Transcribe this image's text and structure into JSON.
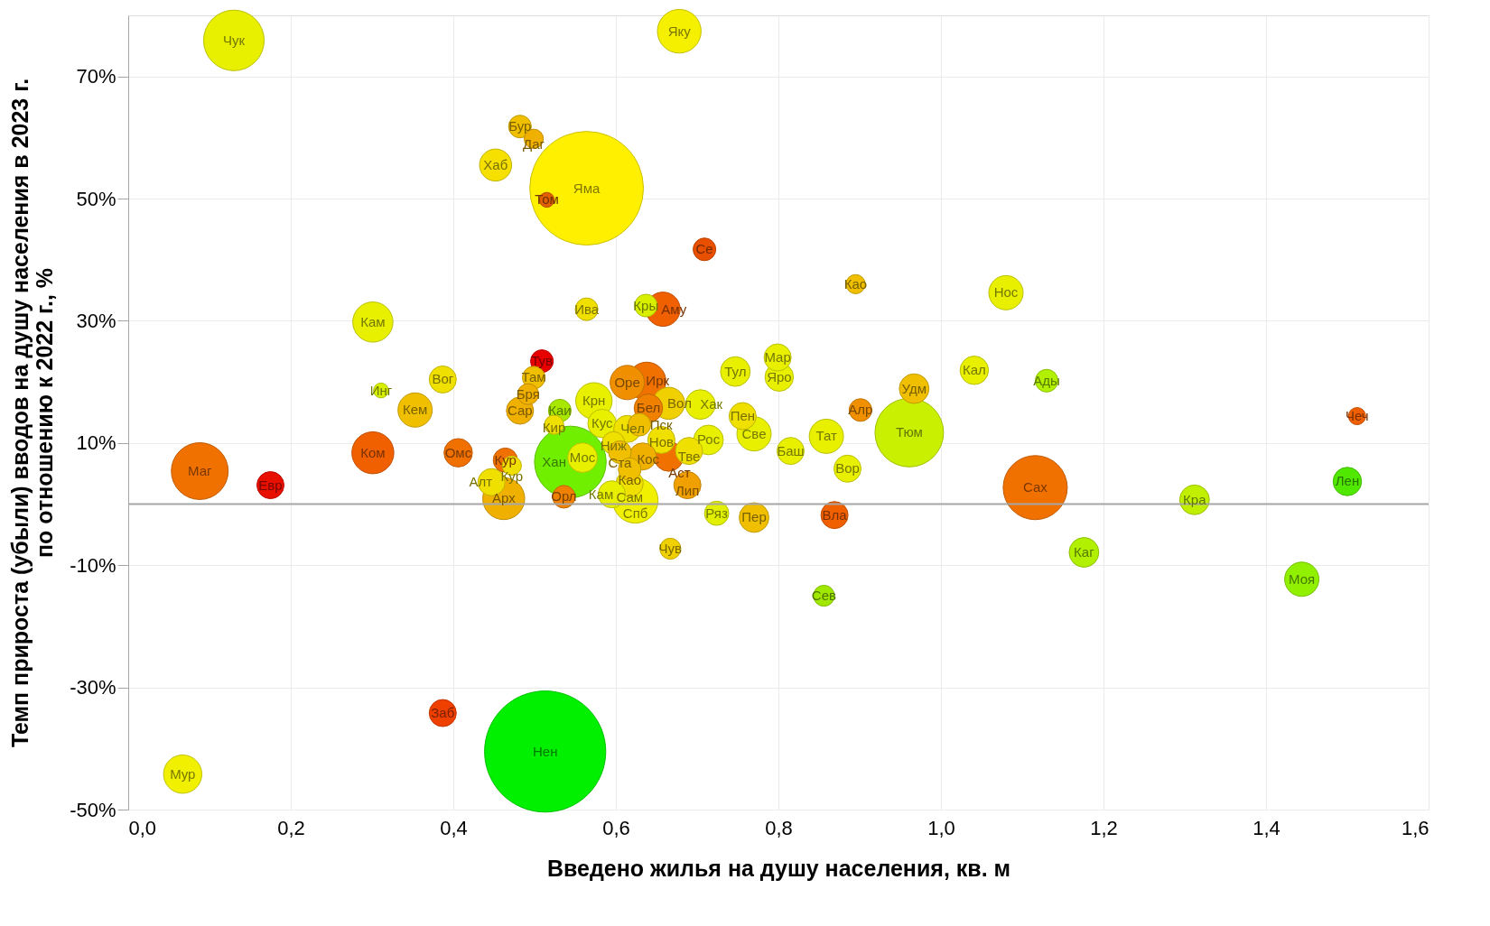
{
  "chart_data": {
    "type": "bubble",
    "xlabel": "Введено жилья на душу населения, кв. м",
    "ylabel": "Темп прироста (убыли) вводов на душу населения в 2023 г.\nпо отношению к 2022 г., %",
    "xlim": [
      0,
      1.6
    ],
    "xticks": [
      {
        "value": 0,
        "label": "0,0"
      },
      {
        "value": 0.2,
        "label": "0,2"
      },
      {
        "value": 0.4,
        "label": "0,4"
      },
      {
        "value": 0.6,
        "label": "0,6"
      },
      {
        "value": 0.8,
        "label": "0,8"
      },
      {
        "value": 1,
        "label": "1,0"
      },
      {
        "value": 1.2,
        "label": "1,2"
      },
      {
        "value": 1.4,
        "label": "1,4"
      },
      {
        "value": 1.6,
        "label": "1,6"
      }
    ],
    "ylim": [
      -50,
      80
    ],
    "yticks": [
      {
        "value": -50,
        "label": "-50%"
      },
      {
        "value": -30,
        "label": "-30%"
      },
      {
        "value": -10,
        "label": "-10%"
      },
      {
        "value": 10,
        "label": "10%"
      },
      {
        "value": 30,
        "label": "30%"
      },
      {
        "value": 50,
        "label": "50%"
      },
      {
        "value": 70,
        "label": "70%"
      }
    ],
    "grid": true,
    "ref_lines": [
      {
        "axis": "y",
        "value": 0,
        "color": "#a6a6a6"
      }
    ],
    "series": [
      {
        "name": "Чук",
        "color": "#e8f000",
        "x": [
          0.13
        ],
        "values": [
          75.9
        ],
        "sizes": [
          0.25
        ]
      },
      {
        "name": "Яку",
        "color": "#f5ef00",
        "x": [
          0.678
        ],
        "values": [
          77.4
        ],
        "sizes": [
          0.13
        ]
      },
      {
        "name": "Бур",
        "color": "#f0c000",
        "x": [
          0.482
        ],
        "values": [
          61.8
        ],
        "sizes": [
          0.035
        ]
      },
      {
        "name": "Даг",
        "color": "#f0b000",
        "x": [
          0.499
        ],
        "values": [
          59.8
        ],
        "sizes": [
          0.025
        ]
      },
      {
        "name": "Хаб",
        "color": "#f5e000",
        "x": [
          0.452
        ],
        "values": [
          55.5
        ],
        "sizes": [
          0.07
        ]
      },
      {
        "name": "Яма",
        "color": "#fff000",
        "x": [
          0.564
        ],
        "values": [
          51.7
        ],
        "sizes": [
          0.88
        ]
      },
      {
        "name": "Том",
        "color": "#e06000",
        "x": [
          0.515
        ],
        "values": [
          49.8
        ],
        "sizes": [
          0.015
        ]
      },
      {
        "name": "Се",
        "color": "#e85000",
        "x": [
          0.709
        ],
        "values": [
          41.7
        ],
        "sizes": [
          0.035
        ]
      },
      {
        "name": "Као",
        "color": "#f0c000",
        "x": [
          0.895
        ],
        "values": [
          36.0
        ],
        "sizes": [
          0.025
        ]
      },
      {
        "name": "Нос",
        "color": "#e8f000",
        "x": [
          1.08
        ],
        "values": [
          34.6
        ],
        "sizes": [
          0.08
        ]
      },
      {
        "name": "Ива",
        "color": "#f0e000",
        "x": [
          0.564
        ],
        "values": [
          31.9
        ],
        "sizes": [
          0.035
        ]
      },
      {
        "name": "Кры",
        "color": "#d8f000",
        "x": [
          0.637
        ],
        "values": [
          32.5
        ],
        "sizes": [
          0.035
        ]
      },
      {
        "name": "Аму",
        "color": "#f06000",
        "x": [
          0.658
        ],
        "values": [
          31.9
        ],
        "sizes": [
          0.08
        ]
      },
      {
        "name": "Кам",
        "color": "#e8f000",
        "x": [
          0.301
        ],
        "values": [
          29.8
        ],
        "sizes": [
          0.11
        ]
      },
      {
        "name": "Тув",
        "color": "#e80000",
        "x": [
          0.509
        ],
        "values": [
          23.4
        ],
        "sizes": [
          0.035
        ]
      },
      {
        "name": "Там",
        "color": "#f0c000",
        "x": [
          0.499
        ],
        "values": [
          20.7
        ],
        "sizes": [
          0.035
        ]
      },
      {
        "name": "Бря",
        "color": "#f0b000",
        "x": [
          0.492
        ],
        "values": [
          18.0
        ],
        "sizes": [
          0.03
        ]
      },
      {
        "name": "Сар",
        "color": "#f0b000",
        "x": [
          0.482
        ],
        "values": [
          15.3
        ],
        "sizes": [
          0.05
        ]
      },
      {
        "name": "Вог",
        "color": "#f0e000",
        "x": [
          0.387
        ],
        "values": [
          20.4
        ],
        "sizes": [
          0.05
        ]
      },
      {
        "name": "Инг",
        "color": "#d8f000",
        "x": [
          0.311
        ],
        "values": [
          18.6
        ],
        "sizes": [
          0.015
        ]
      },
      {
        "name": "Кем",
        "color": "#f0c000",
        "x": [
          0.353
        ],
        "values": [
          15.4
        ],
        "sizes": [
          0.08
        ]
      },
      {
        "name": "Маг",
        "color": "#f07000",
        "x": [
          0.088
        ],
        "values": [
          5.4
        ],
        "sizes": [
          0.22
        ]
      },
      {
        "name": "Евр",
        "color": "#e81000",
        "x": [
          0.175
        ],
        "values": [
          3.1
        ],
        "sizes": [
          0.05
        ]
      },
      {
        "name": "Ком",
        "color": "#f06000",
        "x": [
          0.301
        ],
        "values": [
          8.4
        ],
        "sizes": [
          0.12
        ]
      },
      {
        "name": "Омс",
        "color": "#f07000",
        "x": [
          0.406
        ],
        "values": [
          8.4
        ],
        "sizes": [
          0.055
        ]
      },
      {
        "name": "Кур",
        "color": "#f07000",
        "x": [
          0.464
        ],
        "values": [
          7.2
        ],
        "sizes": [
          0.04
        ]
      },
      {
        "name": "Кур",
        "color": "#f0e000",
        "x": [
          0.472
        ],
        "values": [
          6.3
        ],
        "sizes": [
          0.025
        ]
      },
      {
        "name": "Алт",
        "color": "#f0e000",
        "x": [
          0.447
        ],
        "values": [
          3.6
        ],
        "sizes": [
          0.05
        ]
      },
      {
        "name": "Арх",
        "color": "#f0b000",
        "x": [
          0.462
        ],
        "values": [
          0.9
        ],
        "sizes": [
          0.12
        ]
      },
      {
        "name": "Каи",
        "color": "#a8e800",
        "x": [
          0.531
        ],
        "values": [
          15.3
        ],
        "sizes": [
          0.035
        ]
      },
      {
        "name": "Кир",
        "color": "#f0e000",
        "x": [
          0.524
        ],
        "values": [
          13.0
        ],
        "sizes": [
          0.025
        ]
      },
      {
        "name": "Крн",
        "color": "#e8f000",
        "x": [
          0.573
        ],
        "values": [
          16.9
        ],
        "sizes": [
          0.09
        ]
      },
      {
        "name": "Мос",
        "color": "#e8f000",
        "x": [
          0.559
        ],
        "values": [
          7.6
        ],
        "sizes": [
          0.06
        ]
      },
      {
        "name": "Хан",
        "color": "#70f000",
        "x": [
          0.544
        ],
        "values": [
          6.9
        ],
        "sizes": [
          0.35
        ]
      },
      {
        "name": "Орл",
        "color": "#f08000",
        "x": [
          0.536
        ],
        "values": [
          1.2
        ],
        "sizes": [
          0.035
        ]
      },
      {
        "name": "Оре",
        "color": "#f09000",
        "x": [
          0.614
        ],
        "values": [
          19.9
        ],
        "sizes": [
          0.08
        ]
      },
      {
        "name": "Ирк",
        "color": "#f07000",
        "x": [
          0.638
        ],
        "values": [
          20.1
        ],
        "sizes": [
          0.1
        ]
      },
      {
        "name": "Бел",
        "color": "#f08000",
        "x": [
          0.64
        ],
        "values": [
          15.7
        ],
        "sizes": [
          0.055
        ]
      },
      {
        "name": "Вол",
        "color": "#f0d000",
        "x": [
          0.665
        ],
        "values": [
          16.5
        ],
        "sizes": [
          0.07
        ]
      },
      {
        "name": "Хак",
        "color": "#e8f000",
        "x": [
          0.704
        ],
        "values": [
          16.3
        ],
        "sizes": [
          0.06
        ]
      },
      {
        "name": "Кус",
        "color": "#e8f000",
        "x": [
          0.583
        ],
        "values": [
          13.2
        ],
        "sizes": [
          0.055
        ]
      },
      {
        "name": "Чел",
        "color": "#f0e000",
        "x": [
          0.614
        ],
        "values": [
          12.3
        ],
        "sizes": [
          0.05
        ]
      },
      {
        "name": "Пск",
        "color": "#f0c000",
        "x": [
          0.629
        ],
        "values": [
          13.0
        ],
        "sizes": [
          0.035
        ]
      },
      {
        "name": "Ниж",
        "color": "#f0e000",
        "x": [
          0.597
        ],
        "values": [
          10.0
        ],
        "sizes": [
          0.035
        ]
      },
      {
        "name": "Нов",
        "color": "#f0e000",
        "x": [
          0.656
        ],
        "values": [
          10.5
        ],
        "sizes": [
          0.05
        ]
      },
      {
        "name": "Рос",
        "color": "#e8f000",
        "x": [
          0.714
        ],
        "values": [
          10.5
        ],
        "sizes": [
          0.06
        ]
      },
      {
        "name": "Тве",
        "color": "#f0e000",
        "x": [
          0.69
        ],
        "values": [
          8.7
        ],
        "sizes": [
          0.05
        ]
      },
      {
        "name": "Ста",
        "color": "#f0c000",
        "x": [
          0.605
        ],
        "values": [
          8.5
        ],
        "sizes": [
          0.035
        ]
      },
      {
        "name": "Кос",
        "color": "#f0b000",
        "x": [
          0.633
        ],
        "values": [
          7.8
        ],
        "sizes": [
          0.05
        ]
      },
      {
        "name": "Аст",
        "color": "#f07000",
        "x": [
          0.665
        ],
        "values": [
          7.8
        ],
        "sizes": [
          0.06
        ]
      },
      {
        "name": "Као",
        "color": "#f0c000",
        "x": [
          0.617
        ],
        "values": [
          5.7
        ],
        "sizes": [
          0.035
        ]
      },
      {
        "name": "Сам",
        "color": "#f0e000",
        "x": [
          0.617
        ],
        "values": [
          3.4
        ],
        "sizes": [
          0.05
        ]
      },
      {
        "name": "Кам",
        "color": "#e8f000",
        "x": [
          0.595
        ],
        "values": [
          1.6
        ],
        "sizes": [
          0.05
        ]
      },
      {
        "name": "Спб",
        "color": "#f0f000",
        "x": [
          0.624
        ],
        "values": [
          0.6
        ],
        "sizes": [
          0.14
        ]
      },
      {
        "name": "Лип",
        "color": "#f0a000",
        "x": [
          0.688
        ],
        "values": [
          3.1
        ],
        "sizes": [
          0.05
        ]
      },
      {
        "name": "Ряз",
        "color": "#e0f000",
        "x": [
          0.724
        ],
        "values": [
          -1.5
        ],
        "sizes": [
          0.04
        ]
      },
      {
        "name": "Пер",
        "color": "#f0c000",
        "x": [
          0.77
        ],
        "values": [
          -2.2
        ],
        "sizes": [
          0.06
        ]
      },
      {
        "name": "Чув",
        "color": "#f0d000",
        "x": [
          0.667
        ],
        "values": [
          -7.3
        ],
        "sizes": [
          0.03
        ]
      },
      {
        "name": "Пен",
        "color": "#f0e000",
        "x": [
          0.756
        ],
        "values": [
          14.4
        ],
        "sizes": [
          0.05
        ]
      },
      {
        "name": "Све",
        "color": "#e8f000",
        "x": [
          0.77
        ],
        "values": [
          11.5
        ],
        "sizes": [
          0.08
        ]
      },
      {
        "name": "Тул",
        "color": "#e8f000",
        "x": [
          0.747
        ],
        "values": [
          21.7
        ],
        "sizes": [
          0.06
        ]
      },
      {
        "name": "Мар",
        "color": "#e8f000",
        "x": [
          0.799
        ],
        "values": [
          24.0
        ],
        "sizes": [
          0.05
        ]
      },
      {
        "name": "Яро",
        "color": "#e8f000",
        "x": [
          0.801
        ],
        "values": [
          20.8
        ],
        "sizes": [
          0.055
        ]
      },
      {
        "name": "Баш",
        "color": "#e8f000",
        "x": [
          0.815
        ],
        "values": [
          8.7
        ],
        "sizes": [
          0.05
        ]
      },
      {
        "name": "Тат",
        "color": "#e8f000",
        "x": [
          0.859
        ],
        "values": [
          11.1
        ],
        "sizes": [
          0.08
        ]
      },
      {
        "name": "Вор",
        "color": "#e8f000",
        "x": [
          0.885
        ],
        "values": [
          5.8
        ],
        "sizes": [
          0.05
        ]
      },
      {
        "name": "Алр",
        "color": "#f09000",
        "x": [
          0.901
        ],
        "values": [
          15.4
        ],
        "sizes": [
          0.035
        ]
      },
      {
        "name": "Удм",
        "color": "#f0c000",
        "x": [
          0.967
        ],
        "values": [
          18.9
        ],
        "sizes": [
          0.06
        ]
      },
      {
        "name": "Тюм",
        "color": "#c8f000",
        "x": [
          0.961
        ],
        "values": [
          11.7
        ],
        "sizes": [
          0.32
        ]
      },
      {
        "name": "Вла",
        "color": "#f06000",
        "x": [
          0.869
        ],
        "values": [
          -1.8
        ],
        "sizes": [
          0.05
        ]
      },
      {
        "name": "Сев",
        "color": "#a0e800",
        "x": [
          0.856
        ],
        "values": [
          -15.0
        ],
        "sizes": [
          0.03
        ]
      },
      {
        "name": "Кал",
        "color": "#e8f000",
        "x": [
          1.041
        ],
        "values": [
          21.9
        ],
        "sizes": [
          0.055
        ]
      },
      {
        "name": "Ады",
        "color": "#b0f000",
        "x": [
          1.13
        ],
        "values": [
          20.2
        ],
        "sizes": [
          0.035
        ]
      },
      {
        "name": "Сах",
        "color": "#f07000",
        "x": [
          1.116
        ],
        "values": [
          2.7
        ],
        "sizes": [
          0.28
        ]
      },
      {
        "name": "Каг",
        "color": "#b0f000",
        "x": [
          1.176
        ],
        "values": [
          -7.9
        ],
        "sizes": [
          0.06
        ]
      },
      {
        "name": "Кра",
        "color": "#c0f000",
        "x": [
          1.312
        ],
        "values": [
          0.7
        ],
        "sizes": [
          0.06
        ]
      },
      {
        "name": "Моя",
        "color": "#90f000",
        "x": [
          1.444
        ],
        "values": [
          -12.3
        ],
        "sizes": [
          0.08
        ]
      },
      {
        "name": "Чеч",
        "color": "#f06000",
        "x": [
          1.512
        ],
        "values": [
          14.4
        ],
        "sizes": [
          0.02
        ]
      },
      {
        "name": "Лен",
        "color": "#50e800",
        "x": [
          1.5
        ],
        "values": [
          3.7
        ],
        "sizes": [
          0.055
        ]
      },
      {
        "name": "Заб",
        "color": "#f04000",
        "x": [
          0.387
        ],
        "values": [
          -34.2
        ],
        "sizes": [
          0.05
        ]
      },
      {
        "name": "Нен",
        "color": "#00f000",
        "x": [
          0.513
        ],
        "values": [
          -40.5
        ],
        "sizes": [
          1
        ]
      },
      {
        "name": "Мур",
        "color": "#f0f000",
        "x": [
          0.067
        ],
        "values": [
          -44.2
        ],
        "sizes": [
          0.1
        ]
      }
    ]
  }
}
